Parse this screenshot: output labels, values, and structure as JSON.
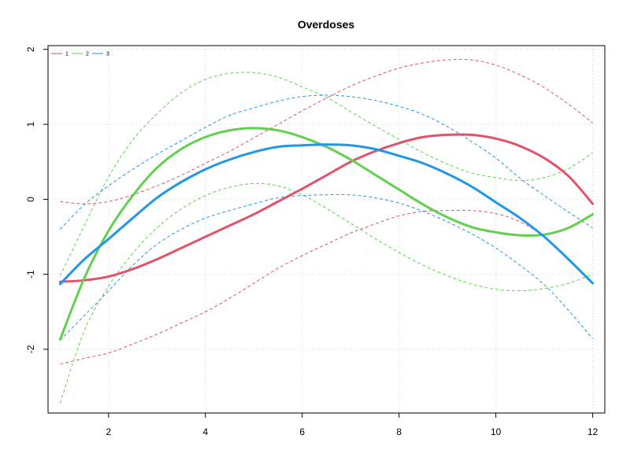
{
  "chart_data": {
    "type": "line",
    "title": "Overdoses",
    "xlabel": "",
    "ylabel": "",
    "xlim": [
      0.75,
      12.25
    ],
    "ylim": [
      -2.85,
      2.05
    ],
    "x_ticks": [
      2,
      4,
      6,
      8,
      10,
      12
    ],
    "y_ticks": [
      -2,
      -1,
      0,
      1,
      2
    ],
    "grid": true,
    "legend_position": "top-left",
    "x": [
      1,
      1.5,
      2,
      2.5,
      3,
      3.5,
      4,
      4.5,
      5,
      5.5,
      6,
      6.5,
      7,
      7.5,
      8,
      8.5,
      9,
      9.5,
      10,
      10.5,
      11,
      11.5,
      12
    ],
    "series": [
      {
        "name": "1",
        "color": "#DF536B",
        "values": [
          -1.1,
          -1.08,
          -1.03,
          -0.93,
          -0.8,
          -0.65,
          -0.5,
          -0.35,
          -0.2,
          -0.03,
          0.14,
          0.32,
          0.5,
          0.64,
          0.75,
          0.83,
          0.86,
          0.86,
          0.81,
          0.71,
          0.55,
          0.31,
          -0.06
        ],
        "lower": [
          -2.2,
          -2.12,
          -2.05,
          -1.93,
          -1.8,
          -1.65,
          -1.5,
          -1.32,
          -1.12,
          -0.92,
          -0.75,
          -0.6,
          -0.45,
          -0.33,
          -0.22,
          -0.16,
          -0.15,
          -0.15,
          -0.19,
          -0.3,
          -0.5,
          -0.8,
          -1.12
        ],
        "upper": [
          -0.03,
          -0.06,
          -0.03,
          0.06,
          0.18,
          0.32,
          0.48,
          0.64,
          0.82,
          1.0,
          1.18,
          1.35,
          1.51,
          1.64,
          1.75,
          1.82,
          1.86,
          1.86,
          1.79,
          1.66,
          1.49,
          1.27,
          1.02
        ]
      },
      {
        "name": "2",
        "color": "#61D04F",
        "values": [
          -1.87,
          -1.05,
          -0.42,
          0.05,
          0.42,
          0.67,
          0.83,
          0.92,
          0.95,
          0.92,
          0.83,
          0.7,
          0.53,
          0.33,
          0.13,
          -0.07,
          -0.24,
          -0.37,
          -0.44,
          -0.48,
          -0.47,
          -0.38,
          -0.2
        ],
        "lower": [
          -2.72,
          -1.75,
          -1.16,
          -0.72,
          -0.38,
          -0.13,
          0.05,
          0.16,
          0.21,
          0.18,
          0.06,
          -0.12,
          -0.32,
          -0.52,
          -0.71,
          -0.88,
          -1.02,
          -1.13,
          -1.2,
          -1.22,
          -1.19,
          -1.12,
          -1.0
        ],
        "upper": [
          -1.02,
          -0.35,
          0.3,
          0.79,
          1.14,
          1.42,
          1.6,
          1.68,
          1.69,
          1.63,
          1.5,
          1.36,
          1.17,
          0.98,
          0.8,
          0.62,
          0.47,
          0.35,
          0.29,
          0.25,
          0.29,
          0.41,
          0.62
        ]
      },
      {
        "name": "3",
        "color": "#2297E6",
        "values": [
          -1.13,
          -0.8,
          -0.53,
          -0.25,
          0.02,
          0.23,
          0.4,
          0.53,
          0.63,
          0.7,
          0.72,
          0.73,
          0.72,
          0.67,
          0.58,
          0.48,
          0.34,
          0.17,
          -0.04,
          -0.25,
          -0.5,
          -0.8,
          -1.12
        ],
        "lower": [
          -1.88,
          -1.55,
          -1.22,
          -0.88,
          -0.6,
          -0.4,
          -0.25,
          -0.15,
          -0.06,
          0.02,
          0.05,
          0.06,
          0.06,
          0.02,
          -0.05,
          -0.16,
          -0.3,
          -0.46,
          -0.65,
          -0.88,
          -1.14,
          -1.48,
          -1.86
        ],
        "upper": [
          -0.4,
          -0.07,
          0.18,
          0.4,
          0.6,
          0.78,
          0.96,
          1.12,
          1.22,
          1.31,
          1.37,
          1.39,
          1.37,
          1.32,
          1.24,
          1.13,
          0.97,
          0.77,
          0.55,
          0.28,
          0.05,
          -0.17,
          -0.38
        ]
      }
    ]
  }
}
